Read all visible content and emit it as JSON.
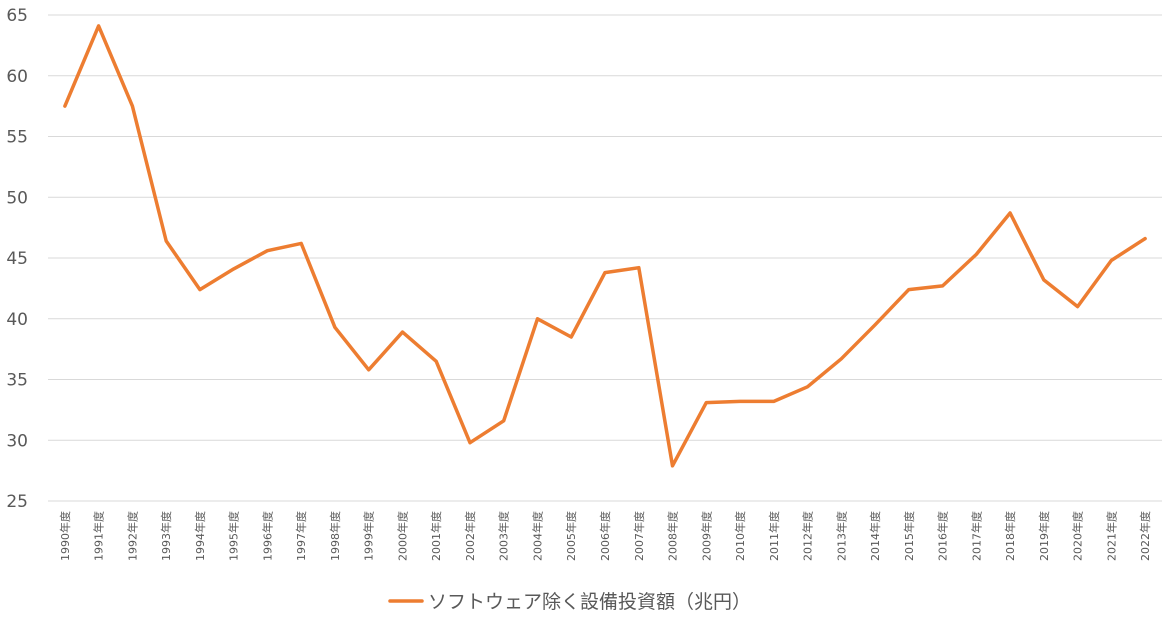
{
  "chart_data": {
    "type": "line",
    "title": "",
    "xlabel": "",
    "ylabel": "",
    "ylim": [
      25,
      65
    ],
    "yticks": [
      25,
      30,
      35,
      40,
      45,
      50,
      55,
      60,
      65
    ],
    "grid": true,
    "legend": "bottom",
    "categories": [
      "1990年度",
      "1991年度",
      "1992年度",
      "1993年度",
      "1994年度",
      "1995年度",
      "1996年度",
      "1997年度",
      "1998年度",
      "1999年度",
      "2000年度",
      "2001年度",
      "2002年度",
      "2003年度",
      "2004年度",
      "2005年度",
      "2006年度",
      "2007年度",
      "2008年度",
      "2009年度",
      "2010年度",
      "2011年度",
      "2012年度",
      "2013年度",
      "2014年度",
      "2015年度",
      "2016年度",
      "2017年度",
      "2018年度",
      "2019年度",
      "2020年度",
      "2021年度",
      "2022年度"
    ],
    "series": [
      {
        "name": "ソフトウェア除く設備投資額（兆円）",
        "color": "#ed7d31",
        "values": [
          57.5,
          64.1,
          57.5,
          46.4,
          42.4,
          44.1,
          45.6,
          46.2,
          39.3,
          35.8,
          38.9,
          36.5,
          29.8,
          31.6,
          40.0,
          38.5,
          43.8,
          44.2,
          27.9,
          33.1,
          33.2,
          33.2,
          34.4,
          36.7,
          39.5,
          42.4,
          42.7,
          45.3,
          48.7,
          43.2,
          41.0,
          44.8,
          46.6
        ]
      }
    ]
  }
}
